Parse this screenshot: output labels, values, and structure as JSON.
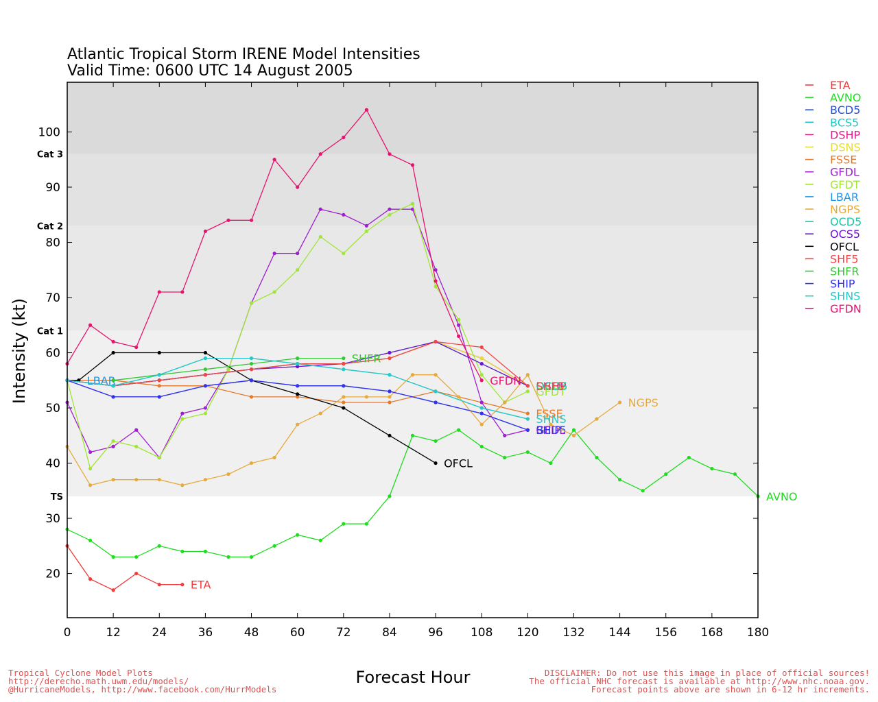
{
  "chart_data": {
    "type": "line",
    "title": "Atlantic Tropical Storm IRENE Model Intensities",
    "subtitle": "Valid Time: 0600 UTC 14 August 2005",
    "xlabel": "Forecast Hour",
    "ylabel": "Intensity (kt)",
    "xlim": [
      0,
      180
    ],
    "ylim": [
      12,
      109
    ],
    "x_ticks": [
      "0",
      "12",
      "24",
      "36",
      "48",
      "60",
      "72",
      "84",
      "96",
      "108",
      "120",
      "132",
      "144",
      "156",
      "168",
      "180"
    ],
    "y_ticks": [
      "20",
      "30",
      "40",
      "50",
      "60",
      "70",
      "80",
      "90",
      "100"
    ],
    "category_bands": [
      {
        "label": "TS",
        "from": 34,
        "to": 64,
        "color": "#f0f0f0"
      },
      {
        "label": "Cat 1",
        "from": 64,
        "to": 83,
        "color": "#e8e8e8"
      },
      {
        "label": "Cat 2",
        "from": 83,
        "to": 96,
        "color": "#e2e2e2"
      },
      {
        "label": "Cat 3",
        "from": 96,
        "to": 109,
        "color": "#dadada"
      }
    ],
    "legend": [
      "ETA",
      "AVNO",
      "BCD5",
      "BCS5",
      "DSHP",
      "DSNS",
      "FSSE",
      "GFDL",
      "GFDT",
      "LBAR",
      "NGPS",
      "OCD5",
      "OCS5",
      "OFCL",
      "SHF5",
      "SHFR",
      "SHIP",
      "SHNS",
      "GFDN"
    ],
    "series": [
      {
        "name": "ETA",
        "color": "#f03c3c",
        "x": [
          0,
          6,
          12,
          18,
          24,
          30
        ],
        "y": [
          25,
          19,
          17,
          20,
          18,
          18
        ],
        "end_label": "ETA"
      },
      {
        "name": "AVNO",
        "color": "#1edc1e",
        "x": [
          0,
          6,
          12,
          18,
          24,
          30,
          36,
          42,
          48,
          54,
          60,
          66,
          72,
          78,
          84,
          90,
          96,
          102,
          108,
          114,
          120,
          126,
          132,
          138,
          144,
          150,
          156,
          162,
          168,
          174,
          180
        ],
        "y": [
          28,
          26,
          23,
          23,
          25,
          24,
          24,
          23,
          23,
          25,
          27,
          26,
          29,
          29,
          34,
          45,
          44,
          46,
          43,
          41,
          42,
          40,
          46,
          41,
          37,
          35,
          38,
          41,
          39,
          38,
          34
        ],
        "end_label": "AVNO"
      },
      {
        "name": "BCD5",
        "color": "#2850dc",
        "x": [
          0,
          12,
          24,
          36,
          48,
          60,
          72,
          84,
          96,
          108,
          120
        ],
        "y": [
          55,
          52,
          52,
          54,
          55,
          54,
          54,
          53,
          51,
          49,
          46
        ],
        "end_label": "BCD5"
      },
      {
        "name": "BCS5",
        "color": "#1ec8c8",
        "x": [
          0,
          12,
          24,
          36,
          48,
          60,
          72,
          84,
          96,
          108,
          120
        ],
        "y": [
          55,
          54,
          56,
          59,
          59,
          58,
          57,
          56,
          53,
          50,
          48
        ],
        "end_label": ""
      },
      {
        "name": "DSHP",
        "color": "#dc1e8c",
        "x": [
          0,
          12,
          24,
          36,
          48,
          60,
          72,
          84,
          96,
          108,
          120
        ],
        "y": [
          55,
          54,
          55,
          56,
          57,
          58,
          58,
          59,
          62,
          59,
          54
        ],
        "end_label": "DSHP"
      },
      {
        "name": "DSNS",
        "color": "#e6dc32",
        "x": [
          0,
          12,
          24,
          36,
          48,
          60,
          72,
          84,
          96,
          108,
          120
        ],
        "y": [
          55,
          54,
          55,
          56,
          57,
          58,
          58,
          59,
          62,
          59,
          54
        ],
        "end_label": ""
      },
      {
        "name": "FSSE",
        "color": "#e67828",
        "x": [
          0,
          12,
          24,
          36,
          48,
          60,
          72,
          84,
          96,
          108,
          120
        ],
        "y": [
          55,
          55,
          54,
          54,
          52,
          52,
          51,
          51,
          53,
          51,
          49
        ],
        "end_label": "FSSE"
      },
      {
        "name": "GFDL",
        "color": "#a01ed2",
        "x": [
          0,
          6,
          12,
          18,
          24,
          30,
          36,
          42,
          48,
          54,
          60,
          66,
          72,
          78,
          84,
          90,
          96,
          102,
          108,
          114,
          120
        ],
        "y": [
          51,
          42,
          43,
          46,
          41,
          49,
          50,
          57,
          69,
          78,
          78,
          86,
          85,
          83,
          86,
          86,
          75,
          65,
          51,
          45,
          46
        ],
        "end_label": "GFDL"
      },
      {
        "name": "GFDT",
        "color": "#a0e632",
        "x": [
          0,
          6,
          12,
          18,
          24,
          30,
          36,
          42,
          48,
          54,
          60,
          66,
          72,
          78,
          84,
          90,
          96,
          102,
          108,
          114,
          120
        ],
        "y": [
          55,
          39,
          44,
          43,
          41,
          48,
          49,
          57,
          69,
          71,
          75,
          81,
          78,
          82,
          85,
          87,
          72,
          66,
          56,
          51,
          53
        ],
        "end_label": "GFDT"
      },
      {
        "name": "LBAR",
        "color": "#1e96e6",
        "x": [
          0,
          3
        ],
        "y": [
          55,
          55
        ],
        "end_label": "LBAR"
      },
      {
        "name": "NGPS",
        "color": "#e6aa3c",
        "x": [
          0,
          6,
          12,
          18,
          24,
          30,
          36,
          42,
          48,
          54,
          60,
          66,
          72,
          78,
          84,
          90,
          96,
          102,
          108,
          114,
          120,
          126,
          132,
          138,
          144
        ],
        "y": [
          43,
          36,
          37,
          37,
          37,
          36,
          37,
          38,
          40,
          41,
          47,
          49,
          52,
          52,
          52,
          56,
          56,
          52,
          47,
          51,
          56,
          47,
          45,
          48,
          51
        ],
        "end_label": "NGPS"
      },
      {
        "name": "OCD5",
        "color": "#1ec8a0",
        "x": [
          0,
          12,
          24,
          36,
          48,
          60,
          72,
          84,
          96,
          108,
          120
        ],
        "y": [
          55,
          54,
          55,
          56,
          57,
          58,
          58,
          60,
          62,
          58,
          54
        ],
        "end_label": "OCD5"
      },
      {
        "name": "OCS5",
        "color": "#6e14d2",
        "x": [
          0,
          12,
          24,
          36,
          48,
          60,
          72,
          84,
          96,
          108,
          120
        ],
        "y": [
          55,
          54,
          55,
          56,
          57,
          57.5,
          58,
          60,
          62,
          58,
          54
        ],
        "end_label": ""
      },
      {
        "name": "OFCL",
        "color": "#000000",
        "x": [
          0,
          3,
          12,
          24,
          36,
          48,
          60,
          72,
          84,
          96
        ],
        "y": [
          55,
          55,
          60,
          60,
          60,
          55,
          52.5,
          50,
          45,
          40
        ],
        "end_label": "OFCL"
      },
      {
        "name": "SHF5",
        "color": "#f04646",
        "x": [
          0,
          12,
          24,
          36,
          48,
          60,
          72,
          84,
          96,
          108,
          120
        ],
        "y": [
          55,
          54,
          55,
          56,
          57,
          58,
          58,
          59,
          62,
          61,
          54
        ],
        "end_label": "SHF5"
      },
      {
        "name": "SHFR",
        "color": "#32c832",
        "x": [
          12,
          24,
          36,
          48,
          60,
          72
        ],
        "y": [
          55,
          56,
          57,
          58,
          59,
          59
        ],
        "end_label": "SHFR"
      },
      {
        "name": "SHIP",
        "color": "#3232f0",
        "x": [
          0,
          12,
          24,
          36,
          48,
          60,
          72,
          84,
          96,
          108,
          120
        ],
        "y": [
          55,
          52,
          52,
          54,
          55,
          54,
          54,
          53,
          51,
          49,
          46
        ],
        "end_label": "SHIP"
      },
      {
        "name": "SHNS",
        "color": "#28c8c8",
        "x": [
          0,
          12,
          24,
          36,
          48,
          60,
          72,
          84,
          96,
          108,
          120
        ],
        "y": [
          55,
          54,
          56,
          59,
          59,
          58,
          57,
          56,
          53,
          50,
          48
        ],
        "end_label": "SHNS"
      },
      {
        "name": "GFDN",
        "color": "#e6146e",
        "x": [
          0,
          6,
          12,
          18,
          24,
          30,
          36,
          42,
          48,
          54,
          60,
          66,
          72,
          78,
          84,
          90,
          96,
          102,
          108
        ],
        "y": [
          58,
          65,
          62,
          61,
          71,
          71,
          82,
          84,
          84,
          95,
          90,
          96,
          99,
          104,
          96,
          94,
          73,
          63,
          55
        ],
        "end_label": "GFDN"
      }
    ]
  },
  "footer": {
    "left_line1": "Tropical Cyclone Model Plots",
    "left_line2": "http://derecho.math.uwm.edu/models/",
    "left_line3": "@HurricaneModels, http://www.facebook.com/HurrModels",
    "right_line1": "DISCLAIMER: Do not use this image in place of official sources!",
    "right_line2": "The official NHC forecast is available at http://www.nhc.noaa.gov.",
    "right_line3": "Forecast points above are shown in 6-12 hr increments."
  }
}
